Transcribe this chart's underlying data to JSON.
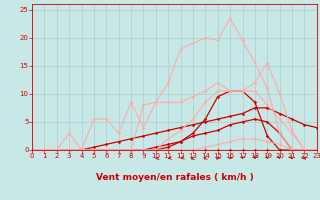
{
  "bg_color": "#c8e8e8",
  "grid_color": "#aacccc",
  "xlabel": "Vent moyen/en rafales ( km/h )",
  "xlabel_color": "#cc0000",
  "tick_color": "#cc0000",
  "xmin": 0,
  "xmax": 23,
  "ymin": 0,
  "ymax": 26,
  "yticks": [
    0,
    5,
    10,
    15,
    20,
    25
  ],
  "xticks": [
    0,
    1,
    2,
    3,
    4,
    5,
    6,
    7,
    8,
    9,
    10,
    11,
    12,
    13,
    14,
    15,
    16,
    17,
    18,
    19,
    20,
    21,
    22,
    23
  ],
  "series": [
    {
      "x": [
        0,
        1,
        2,
        3,
        4,
        5,
        6,
        7,
        8,
        9,
        10,
        11,
        12,
        13,
        14,
        15,
        16,
        17,
        18,
        19,
        20,
        21,
        22,
        23
      ],
      "y": [
        0,
        0,
        0,
        0,
        0,
        0,
        0,
        0,
        0,
        0,
        0,
        0,
        0,
        0,
        0,
        0,
        0,
        0,
        0,
        0,
        0,
        0,
        0,
        0
      ],
      "color": "#cc0000",
      "lw": 0.8,
      "marker": "D",
      "ms": 1.5
    },
    {
      "x": [
        0,
        1,
        2,
        3,
        4,
        5,
        6,
        7,
        8,
        9,
        10,
        11,
        12,
        13,
        14,
        15,
        16,
        17,
        18,
        19,
        20,
        21,
        22,
        23
      ],
      "y": [
        0,
        0,
        0,
        0,
        0,
        0,
        0,
        0,
        0,
        0,
        0.5,
        1.0,
        1.5,
        2.5,
        3.0,
        3.5,
        4.5,
        5.0,
        5.5,
        5.0,
        3.0,
        0,
        0,
        0
      ],
      "color": "#cc0000",
      "lw": 0.9,
      "marker": "D",
      "ms": 1.5
    },
    {
      "x": [
        0,
        1,
        2,
        3,
        4,
        5,
        6,
        7,
        8,
        9,
        10,
        11,
        12,
        13,
        14,
        15,
        16,
        17,
        18,
        19,
        20,
        21,
        22,
        23
      ],
      "y": [
        0,
        0,
        0,
        0,
        0,
        0,
        0,
        0,
        0,
        0,
        0,
        0.5,
        1.5,
        3.0,
        5.5,
        9.5,
        10.5,
        10.5,
        8.5,
        2.5,
        0,
        0,
        0,
        0
      ],
      "color": "#cc0000",
      "lw": 0.9,
      "marker": "D",
      "ms": 1.5
    },
    {
      "x": [
        0,
        1,
        2,
        3,
        4,
        5,
        6,
        7,
        8,
        9,
        10,
        11,
        12,
        13,
        14,
        15,
        16,
        17,
        18,
        19,
        20,
        21,
        22,
        23
      ],
      "y": [
        0,
        0,
        0,
        0,
        0,
        0.5,
        1.0,
        1.5,
        2.0,
        2.5,
        3.0,
        3.5,
        4.0,
        4.5,
        5.0,
        5.5,
        6.0,
        6.5,
        7.5,
        7.5,
        6.5,
        5.5,
        4.5,
        4.0
      ],
      "color": "#cc0000",
      "lw": 0.9,
      "marker": "D",
      "ms": 1.5
    },
    {
      "x": [
        0,
        1,
        2,
        3,
        4,
        5,
        6,
        7,
        8,
        9,
        10,
        11,
        12,
        13,
        14,
        15,
        16,
        17,
        18,
        19,
        20,
        21,
        22,
        23
      ],
      "y": [
        0,
        0,
        0,
        3.0,
        0,
        5.5,
        5.5,
        3.0,
        8.5,
        4.0,
        8.5,
        8.5,
        8.5,
        9.5,
        10.5,
        12.0,
        10.5,
        10.5,
        10.5,
        8.0,
        5.5,
        3.0,
        0,
        0
      ],
      "color": "#ffaaaa",
      "lw": 0.8,
      "marker": "D",
      "ms": 1.5
    },
    {
      "x": [
        0,
        1,
        2,
        3,
        4,
        5,
        6,
        7,
        8,
        9,
        10,
        11,
        12,
        13,
        14,
        15,
        16,
        17,
        18,
        19,
        20,
        21,
        22,
        23
      ],
      "y": [
        0,
        0,
        0,
        0,
        0,
        0,
        0,
        0,
        0,
        0,
        0,
        0,
        0,
        0,
        0.5,
        1.0,
        1.5,
        2.0,
        2.0,
        1.5,
        1.0,
        0,
        0,
        0
      ],
      "color": "#ffaaaa",
      "lw": 0.8,
      "marker": "D",
      "ms": 1.5
    },
    {
      "x": [
        0,
        1,
        2,
        3,
        4,
        5,
        6,
        7,
        8,
        9,
        10,
        11,
        12,
        13,
        14,
        15,
        16,
        17,
        18,
        19,
        20,
        21,
        22,
        23
      ],
      "y": [
        0,
        0,
        0,
        0,
        0,
        0,
        0,
        0,
        0,
        8.0,
        8.5,
        12.0,
        18.0,
        19.0,
        20.0,
        19.5,
        23.5,
        19.5,
        15.5,
        11.0,
        3.0,
        0,
        0,
        0
      ],
      "color": "#ffaaaa",
      "lw": 0.8,
      "marker": "D",
      "ms": 1.5
    },
    {
      "x": [
        0,
        1,
        2,
        3,
        4,
        5,
        6,
        7,
        8,
        9,
        10,
        11,
        12,
        13,
        14,
        15,
        16,
        17,
        18,
        19,
        20,
        21,
        22,
        23
      ],
      "y": [
        0,
        0,
        0,
        0,
        0,
        0,
        0,
        0,
        0,
        0,
        0,
        2.0,
        3.5,
        5.5,
        8.5,
        10.5,
        10.5,
        10.5,
        12.0,
        15.5,
        10.0,
        3.5,
        0,
        0
      ],
      "color": "#ffaaaa",
      "lw": 0.8,
      "marker": "D",
      "ms": 1.5
    }
  ],
  "arrows": {
    "x": [
      10,
      11,
      12,
      13,
      14,
      15,
      16,
      17,
      18,
      19,
      20,
      21,
      22
    ],
    "angles": [
      190,
      200,
      210,
      225,
      235,
      245,
      255,
      265,
      265,
      270,
      275,
      285,
      295
    ]
  }
}
